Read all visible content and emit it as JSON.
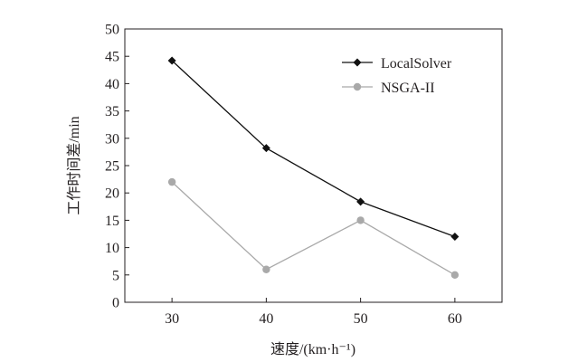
{
  "chart_data": {
    "type": "line",
    "x": [
      30,
      40,
      50,
      60
    ],
    "xticks": [
      "30",
      "40",
      "50",
      "60"
    ],
    "yticks": [
      "0",
      "5",
      "10",
      "15",
      "20",
      "25",
      "30",
      "35",
      "40",
      "45",
      "50"
    ],
    "xlim": [
      25,
      65
    ],
    "ylim": [
      0,
      50
    ],
    "xlabel": "速度/(km·h⁻¹)",
    "ylabel": "工作时间差/min",
    "legend_position": "top-right",
    "grid": false,
    "series": [
      {
        "name": "LocalSolver",
        "values": [
          44.2,
          28.2,
          18.4,
          12.0
        ],
        "color": "#111111",
        "marker": "diamond"
      },
      {
        "name": "NSGA-II",
        "values": [
          22.0,
          6.0,
          15.0,
          5.0
        ],
        "color": "#a9a9a9",
        "marker": "circle"
      }
    ]
  }
}
